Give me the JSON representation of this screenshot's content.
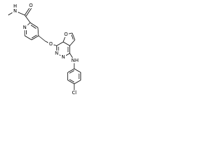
{
  "atoms": {
    "amide_oxygen": "O",
    "amide_nitrogen": "N",
    "amide_hydrogen": "H",
    "pyridine_nitrogen": "N",
    "ether_oxygen": "O",
    "furan_oxygen": "O",
    "pyridazine_nitrogen_1": "N",
    "pyridazine_nitrogen_2": "N",
    "amine": "NH",
    "chlorine": "Cl"
  }
}
